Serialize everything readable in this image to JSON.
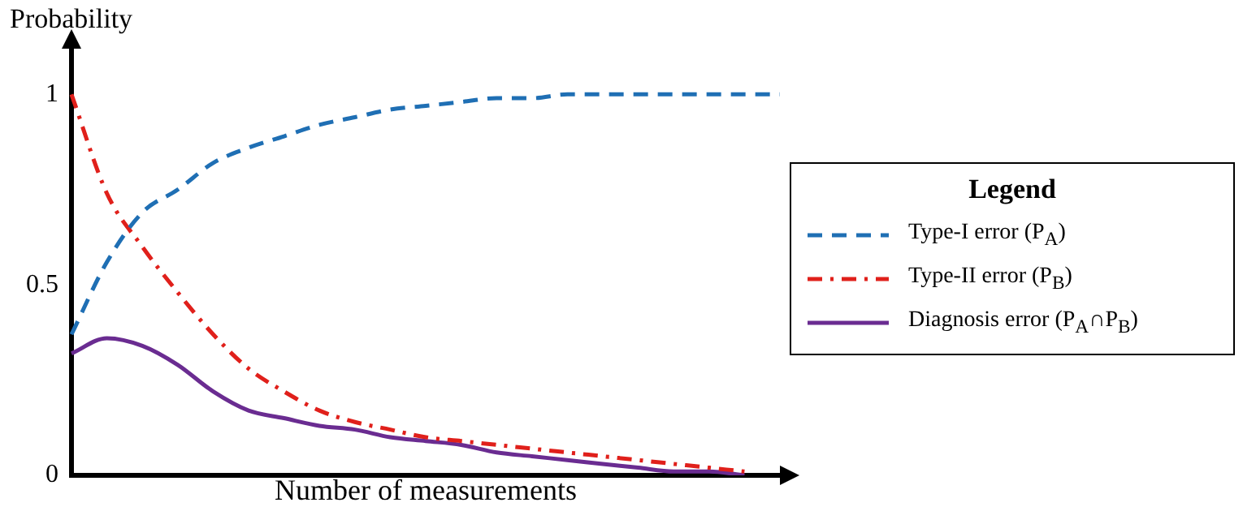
{
  "chart_data": {
    "type": "line",
    "xlabel": "Number of measurements",
    "ylabel": "Probability",
    "legend_title": "Legend",
    "categories": [
      null,
      null,
      null,
      null,
      null,
      null,
      null,
      null,
      null,
      null,
      null,
      null,
      null,
      null,
      null,
      null,
      null,
      null,
      null,
      null,
      null
    ],
    "series": [
      {
        "name": "Type-I error (P$_{A}$)",
        "color": "#1f6fb4",
        "line_style": "dashed",
        "values": [
          0.37,
          0.56,
          0.69,
          0.75,
          0.82,
          0.86,
          0.89,
          0.92,
          0.94,
          0.96,
          0.97,
          0.98,
          0.99,
          0.99,
          1,
          1,
          1,
          1,
          1,
          1,
          1
        ]
      },
      {
        "name": "Type-II error (P$_{B}$)",
        "color": "#e0201b",
        "line_style": "dashdot",
        "values": [
          1.0,
          0.74,
          0.6,
          0.48,
          0.37,
          0.28,
          0.22,
          0.17,
          0.14,
          0.12,
          0.1,
          0.09,
          0.08,
          0.07,
          0.06,
          0.05,
          0.04,
          0.03,
          0.02,
          0.01,
          null
        ]
      },
      {
        "name": "Diagnosis error (P$_{A}$∩P$_{B}$)",
        "color": "#6a2c91",
        "line_style": "solid",
        "values": [
          0.32,
          0.36,
          0.34,
          0.29,
          0.22,
          0.17,
          0.15,
          0.13,
          0.12,
          0.1,
          0.09,
          0.08,
          0.06,
          0.05,
          0.04,
          0.03,
          0.02,
          0.01,
          0.01,
          0,
          null
        ]
      }
    ],
    "ylim": [
      0,
      1.12
    ],
    "yticks": [
      0,
      0.5,
      1
    ],
    "grid": false,
    "legend": "right",
    "marker": "none",
    "tick_labels": "y"
  }
}
